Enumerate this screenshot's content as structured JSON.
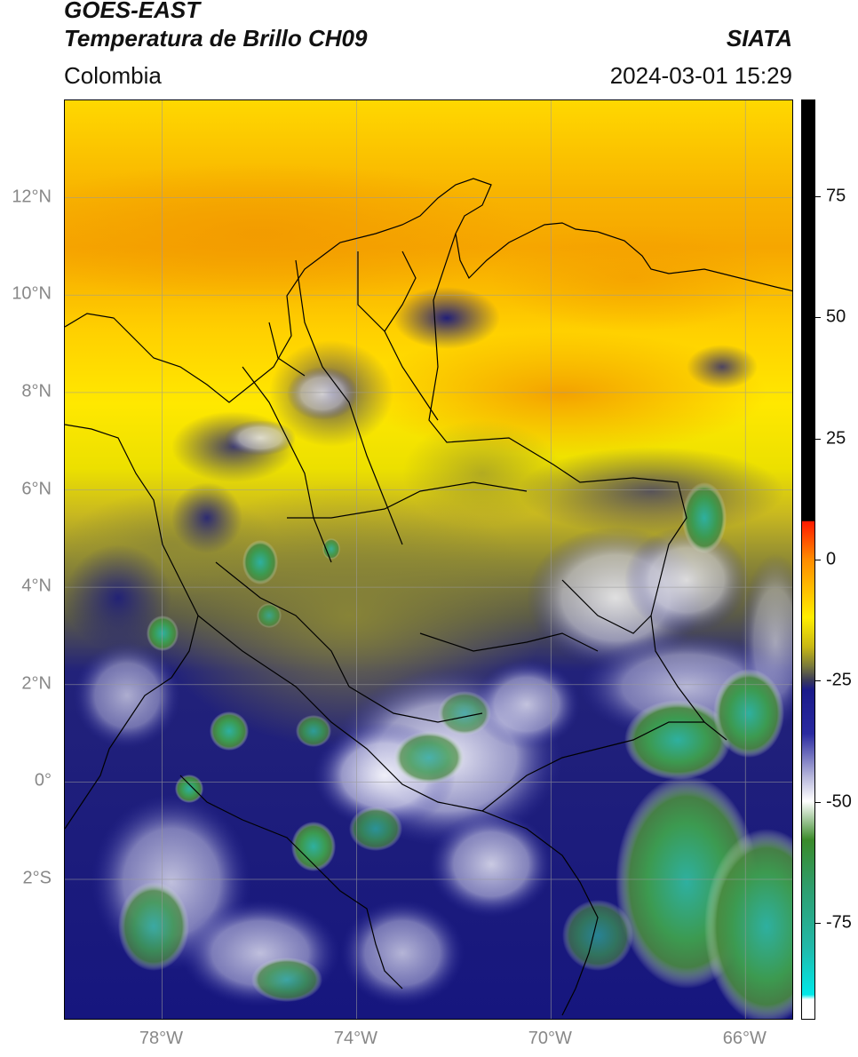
{
  "header": {
    "satellite": "GOES-EAST",
    "product": "Temperatura de Brillo CH09",
    "organization": "SIATA",
    "region": "Colombia",
    "timestamp": "2024-03-01 15:29"
  },
  "axes": {
    "lat_labels": [
      {
        "label": "12°N",
        "value": 12
      },
      {
        "label": "10°N",
        "value": 10
      },
      {
        "label": "8°N",
        "value": 8
      },
      {
        "label": "6°N",
        "value": 6
      },
      {
        "label": "4°N",
        "value": 4
      },
      {
        "label": "2°N",
        "value": 2
      },
      {
        "label": "0°",
        "value": 0
      },
      {
        "label": "2°S",
        "value": -2
      }
    ],
    "lon_labels": [
      {
        "label": "78°W",
        "value": -78
      },
      {
        "label": "74°W",
        "value": -74
      },
      {
        "label": "70°W",
        "value": -70
      },
      {
        "label": "66°W",
        "value": -66
      }
    ],
    "lat_range": [
      -4.9,
      14
    ],
    "lon_range": [
      -80,
      -65
    ]
  },
  "colorbar": {
    "range": [
      -95,
      95
    ],
    "ticks": [
      75,
      50,
      25,
      0,
      -25,
      -50,
      -75
    ],
    "stops": [
      {
        "v": 95,
        "color": "#000000"
      },
      {
        "v": 8,
        "color": "#000000"
      },
      {
        "v": 7.9,
        "color": "#ff1a00"
      },
      {
        "v": 0,
        "color": "#ff8c00"
      },
      {
        "v": -12,
        "color": "#ffee00"
      },
      {
        "v": -18,
        "color": "#c8b814"
      },
      {
        "v": -22,
        "color": "#7a7a3a"
      },
      {
        "v": -25,
        "color": "#3a3a5a"
      },
      {
        "v": -27,
        "color": "#1a1a8a"
      },
      {
        "v": -36,
        "color": "#2a2aa0"
      },
      {
        "v": -45,
        "color": "#b8b8dc"
      },
      {
        "v": -50,
        "color": "#ffffff"
      },
      {
        "v": -58,
        "color": "#3a8a2a"
      },
      {
        "v": -68,
        "color": "#2e9e6e"
      },
      {
        "v": -80,
        "color": "#22b8a8"
      },
      {
        "v": -90,
        "color": "#00e8e8"
      },
      {
        "v": -91,
        "color": "#ffffff"
      }
    ]
  },
  "colors": {
    "warm_orange": "#f6a800",
    "clear_yellow": "#ffe800",
    "olive": "#8f8a34",
    "deep_blue": "#16167e",
    "cold_white": "#f2f2fa",
    "cloud_green": "#3c9040",
    "cloud_teal": "#2eb0a0"
  }
}
